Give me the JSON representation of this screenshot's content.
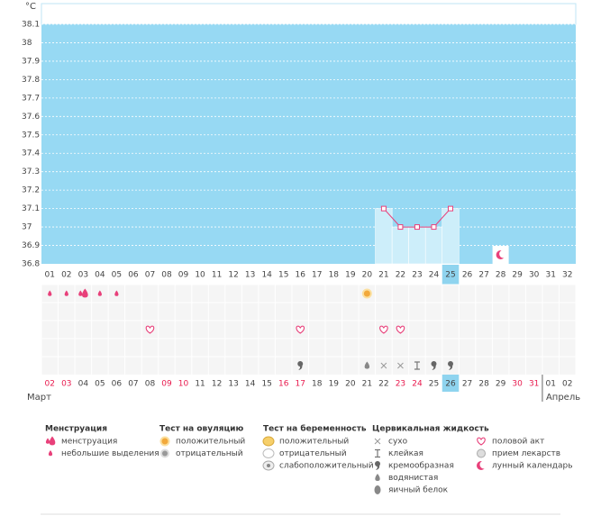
{
  "chart_data": {
    "type": "line",
    "y_label": "°C",
    "categories": [
      "01",
      "02",
      "03",
      "04",
      "05",
      "06",
      "07",
      "08",
      "09",
      "10",
      "11",
      "12",
      "13",
      "14",
      "15",
      "16",
      "17",
      "18",
      "19",
      "20",
      "21",
      "22",
      "23",
      "24",
      "25",
      "26",
      "27",
      "28",
      "29",
      "30",
      "31",
      "32"
    ],
    "values": [
      null,
      null,
      null,
      null,
      null,
      null,
      null,
      null,
      null,
      null,
      null,
      null,
      null,
      null,
      null,
      null,
      null,
      null,
      null,
      null,
      37.1,
      37.0,
      37.0,
      37.0,
      37.1,
      null,
      null,
      null,
      null,
      null,
      null,
      null
    ],
    "color": "#e8407a",
    "background": "#97d9f3",
    "column_color": "#cdeefa",
    "highlight": "25",
    "ylim": [
      36.8,
      38.1
    ],
    "yticks": [
      36.8,
      36.9,
      37,
      37.1,
      37.2,
      37.3,
      37.4,
      37.5,
      37.6,
      37.7,
      37.8,
      37.9,
      38,
      38.1
    ],
    "grid": true
  },
  "events": [
    {
      "day": "01",
      "kind": "spotting"
    },
    {
      "day": "02",
      "kind": "spotting"
    },
    {
      "day": "03",
      "kind": "menstruation"
    },
    {
      "day": "04",
      "kind": "spotting"
    },
    {
      "day": "05",
      "kind": "spotting"
    },
    {
      "day": "20",
      "kind": "ovulation_pos"
    },
    {
      "day": "07",
      "kind": "sex"
    },
    {
      "day": "16",
      "kind": "sex"
    },
    {
      "day": "21",
      "kind": "sex"
    },
    {
      "day": "22",
      "kind": "sex"
    },
    {
      "day": "16",
      "kind": "creamy"
    },
    {
      "day": "20",
      "kind": "watery"
    },
    {
      "day": "21",
      "kind": "dry"
    },
    {
      "day": "22",
      "kind": "dry"
    },
    {
      "day": "23",
      "kind": "sticky"
    },
    {
      "day": "24",
      "kind": "creamy"
    },
    {
      "day": "25",
      "kind": "creamy"
    },
    {
      "day": "28",
      "kind": "moon"
    }
  ],
  "months": [
    {
      "name": "Март",
      "dates": [
        "02",
        "03",
        "04",
        "05",
        "06",
        "07",
        "08",
        "09",
        "10",
        "11",
        "12",
        "13",
        "14",
        "15",
        "16",
        "17",
        "18",
        "19",
        "20",
        "21",
        "22",
        "23",
        "24",
        "25",
        "26",
        "27",
        "28",
        "29",
        "30",
        "31"
      ],
      "weekend": [
        "02",
        "03",
        "09",
        "10",
        "16",
        "17",
        "23",
        "24",
        "30",
        "31"
      ],
      "selected": "26"
    },
    {
      "name": "Апрель",
      "dates": [
        "01",
        "02"
      ],
      "weekend": [],
      "selected": null
    }
  ],
  "legend": [
    {
      "title": "Менструация",
      "items": [
        {
          "label": "менструация",
          "kind": "menstruation"
        },
        {
          "label": "небольшие выделения",
          "kind": "spotting"
        }
      ]
    },
    {
      "title": "Тест на овуляцию",
      "items": [
        {
          "label": "положительный",
          "kind": "ovulation_pos"
        },
        {
          "label": "отрицательный",
          "kind": "ovulation_neg"
        }
      ]
    },
    {
      "title": "Тест на беременность",
      "items": [
        {
          "label": "положительный",
          "kind": "preg_pos"
        },
        {
          "label": "отрицательный",
          "kind": "preg_neg"
        },
        {
          "label": "слабоположительный",
          "kind": "preg_weak"
        }
      ]
    },
    {
      "title": "Цервикальная жидкость",
      "items": [
        {
          "label": "сухо",
          "kind": "dry"
        },
        {
          "label": "клейкая",
          "kind": "sticky"
        },
        {
          "label": "кремообразная",
          "kind": "creamy"
        },
        {
          "label": "водянистая",
          "kind": "watery"
        },
        {
          "label": "яичный белок",
          "kind": "eggwhite"
        }
      ]
    },
    {
      "items": [
        {
          "label": "половой акт",
          "kind": "sex"
        },
        {
          "label": "прием лекарств",
          "kind": "medicine"
        },
        {
          "label": "лунный календарь",
          "kind": "moon"
        }
      ]
    }
  ]
}
